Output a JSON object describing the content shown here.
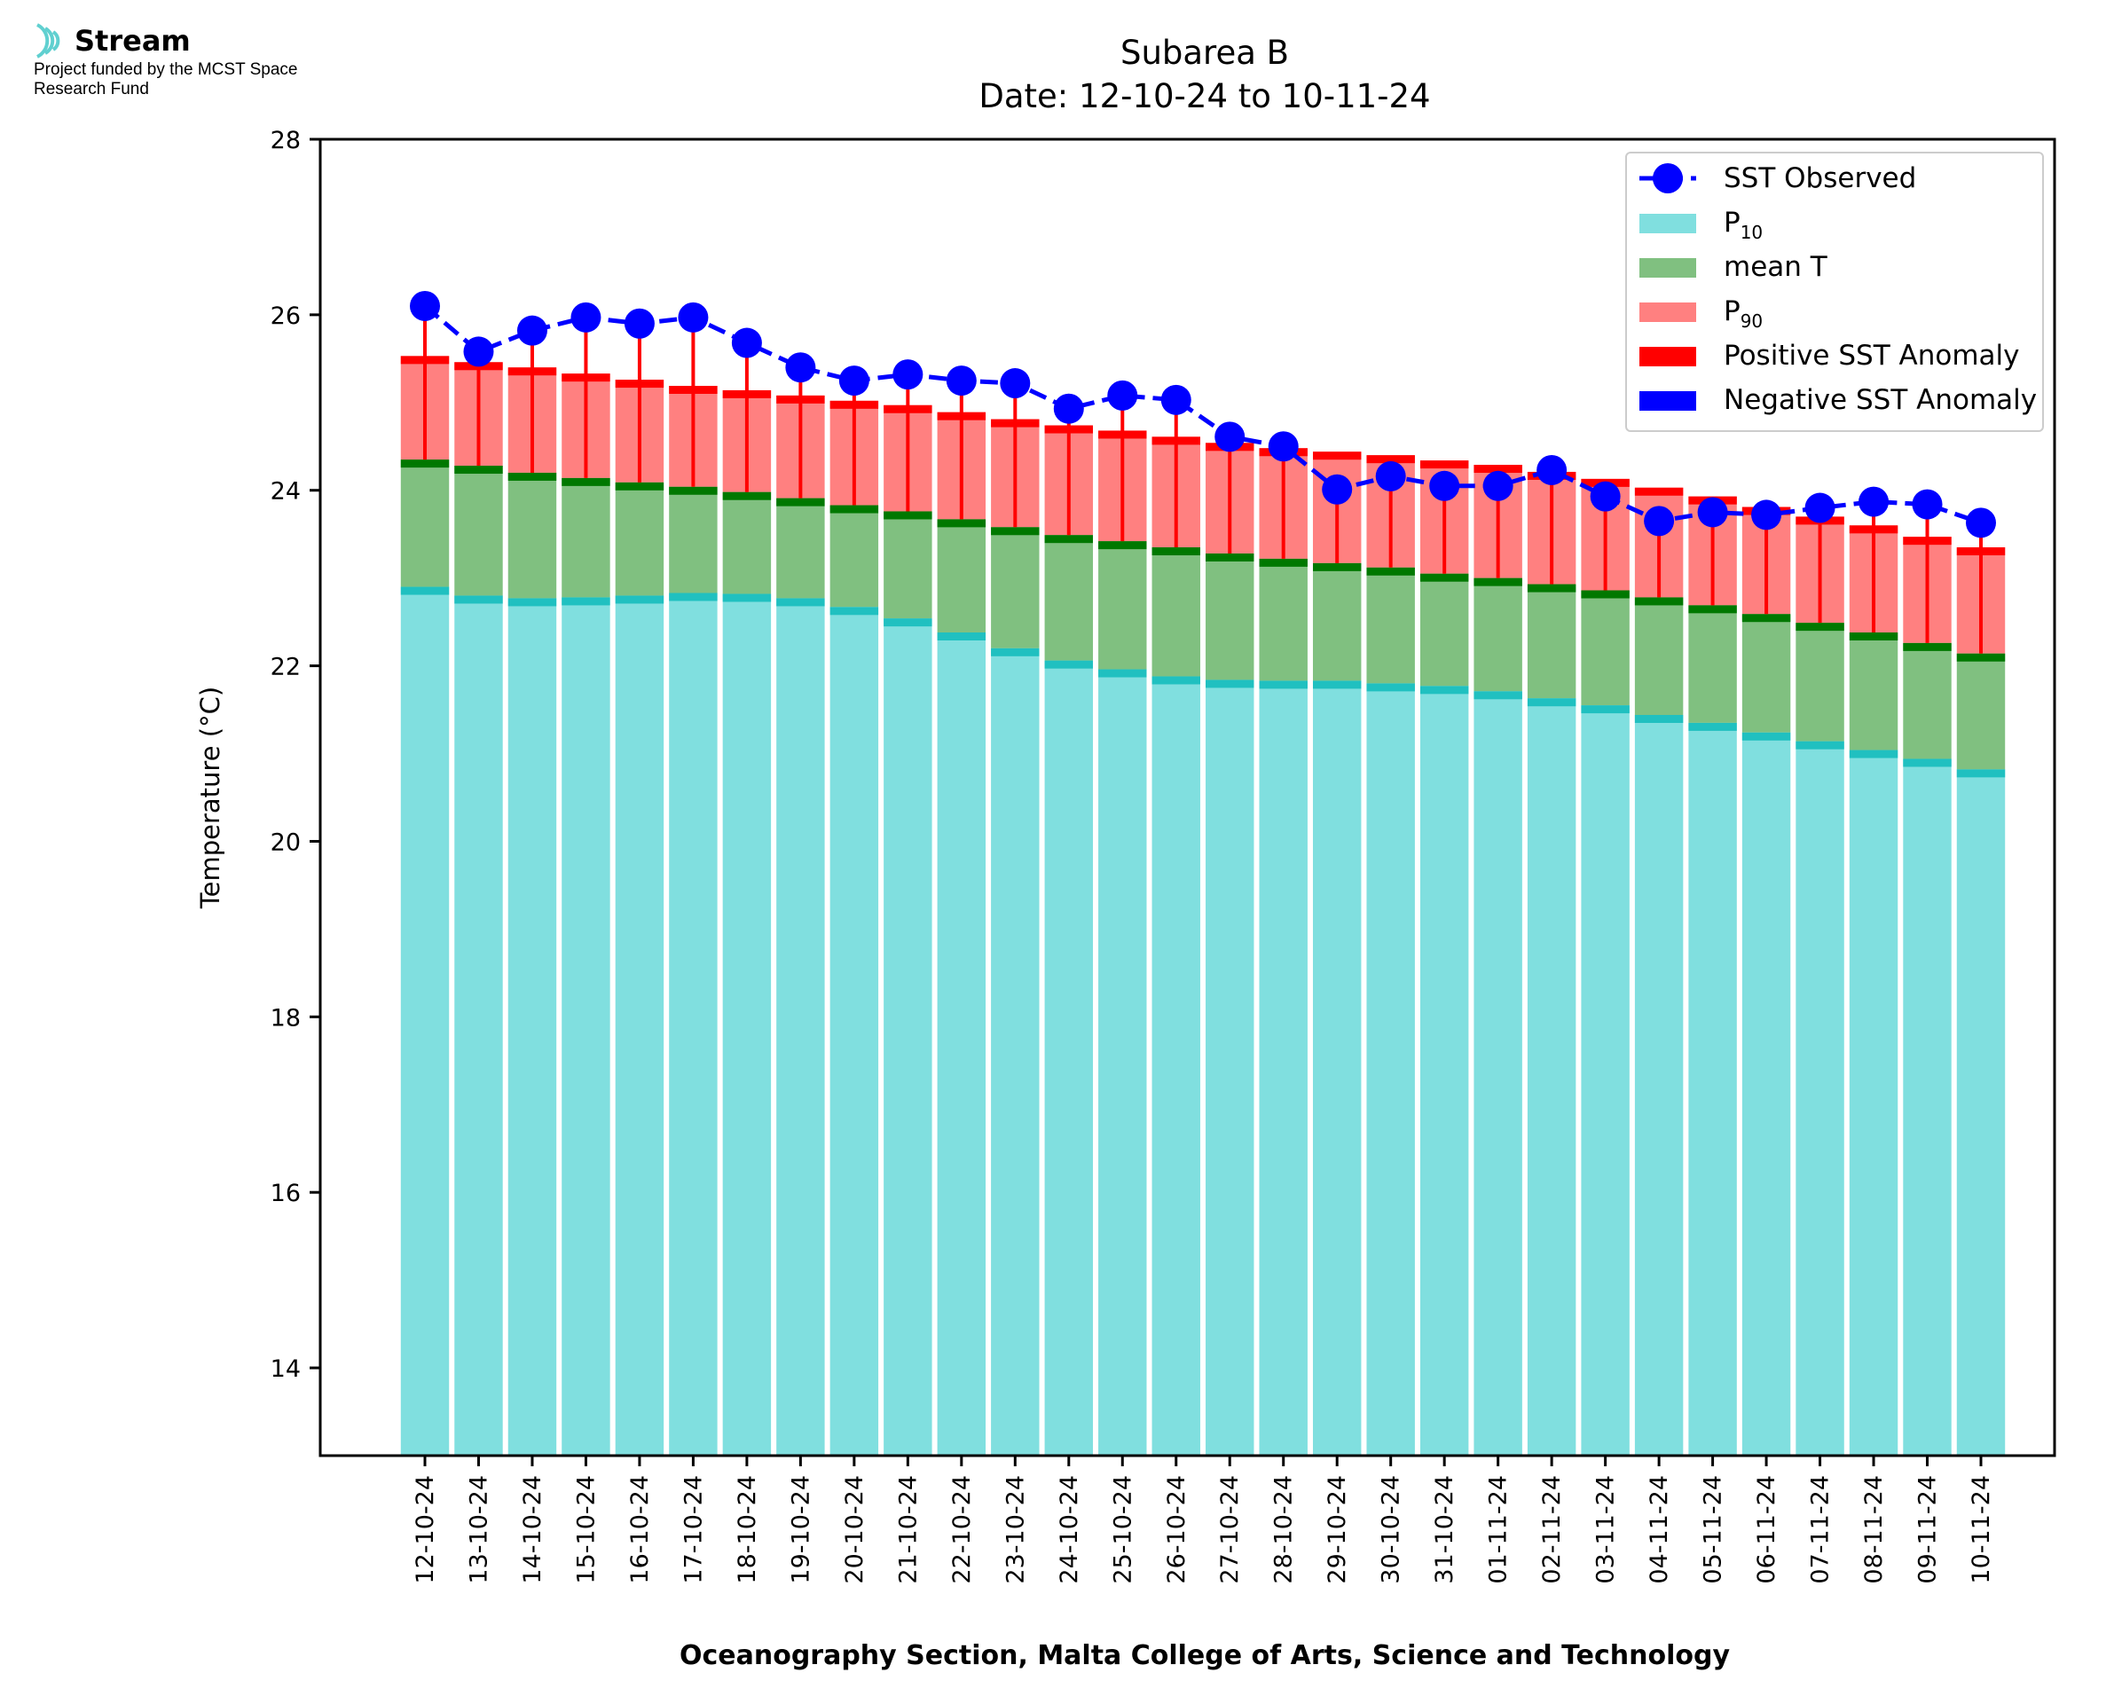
{
  "logo": {
    "brand": "Stream",
    "funding_note": "Project funded by the MCST Space Research Fund"
  },
  "chart_data": {
    "type": "bar",
    "title": "Subarea B",
    "subtitle": "Date: 12-10-24 to 10-11-24",
    "xlabel": "Oceanography Section, Malta College of Arts, Science and Technology",
    "ylabel": "Temperature (°C)",
    "ylim": [
      13,
      28
    ],
    "yticks": [
      14,
      16,
      18,
      20,
      22,
      24,
      26,
      28
    ],
    "legend_position": "top-right",
    "grid": false,
    "categories": [
      "12-10-24",
      "13-10-24",
      "14-10-24",
      "15-10-24",
      "16-10-24",
      "17-10-24",
      "18-10-24",
      "19-10-24",
      "20-10-24",
      "21-10-24",
      "22-10-24",
      "23-10-24",
      "24-10-24",
      "25-10-24",
      "26-10-24",
      "27-10-24",
      "28-10-24",
      "29-10-24",
      "30-10-24",
      "31-10-24",
      "01-11-24",
      "02-11-24",
      "03-11-24",
      "04-11-24",
      "05-11-24",
      "06-11-24",
      "07-11-24",
      "08-11-24",
      "09-11-24",
      "10-11-24"
    ],
    "series": [
      {
        "name": "SST Observed",
        "color": "#0000ff",
        "style": "dashed line with circle markers",
        "values": [
          26.1,
          25.58,
          25.82,
          25.97,
          25.9,
          25.97,
          25.68,
          25.4,
          25.25,
          25.32,
          25.25,
          25.22,
          24.93,
          25.08,
          25.03,
          24.61,
          24.5,
          24.01,
          24.16,
          24.05,
          24.05,
          24.23,
          23.93,
          23.65,
          23.75,
          23.72,
          23.8,
          23.87,
          23.84,
          23.63
        ]
      },
      {
        "name": "P10",
        "label_base": "P",
        "label_sub": "10",
        "color": "#80dfdf",
        "edge_color": "#20c0c0",
        "values": [
          22.9,
          22.8,
          22.77,
          22.78,
          22.8,
          22.83,
          22.82,
          22.77,
          22.67,
          22.54,
          22.38,
          22.2,
          22.06,
          21.96,
          21.88,
          21.84,
          21.83,
          21.83,
          21.8,
          21.77,
          21.71,
          21.63,
          21.55,
          21.44,
          21.35,
          21.24,
          21.14,
          21.04,
          20.94,
          20.82
        ]
      },
      {
        "name": "mean T",
        "color": "#80c080",
        "edge_color": "#007800",
        "values": [
          24.35,
          24.28,
          24.2,
          24.14,
          24.09,
          24.04,
          23.98,
          23.91,
          23.83,
          23.76,
          23.67,
          23.58,
          23.49,
          23.42,
          23.35,
          23.28,
          23.22,
          23.17,
          23.12,
          23.05,
          23.0,
          22.93,
          22.86,
          22.78,
          22.69,
          22.59,
          22.49,
          22.38,
          22.26,
          22.14
        ]
      },
      {
        "name": "P90",
        "label_base": "P",
        "label_sub": "90",
        "color": "#ff8080",
        "edge_color": "#ff0000",
        "values": [
          25.53,
          25.46,
          25.4,
          25.33,
          25.26,
          25.19,
          25.14,
          25.08,
          25.02,
          24.97,
          24.89,
          24.81,
          24.74,
          24.68,
          24.61,
          24.54,
          24.48,
          24.44,
          24.4,
          24.34,
          24.29,
          24.21,
          24.13,
          24.03,
          23.93,
          23.81,
          23.7,
          23.6,
          23.47,
          23.35
        ]
      },
      {
        "name": "Positive SST Anomaly",
        "color": "#ff0000",
        "swatch_only": true
      },
      {
        "name": "Negative SST Anomaly",
        "color": "#0000ff",
        "swatch_only": true
      }
    ],
    "error_bars": {
      "color": "#ff0000",
      "from": "mean T",
      "to": "SST Observed"
    }
  }
}
